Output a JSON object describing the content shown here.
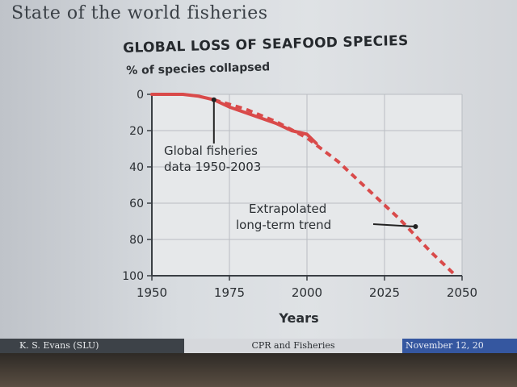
{
  "slide": {
    "title": "State of the world fisheries"
  },
  "chart_data": {
    "type": "line",
    "title": "GLOBAL LOSS OF SEAFOOD SPECIES",
    "ylabel": "% of species collapsed",
    "xlabel": "Years",
    "xlim": [
      1950,
      2050
    ],
    "ylim": [
      0,
      100
    ],
    "y_inverted": true,
    "grid": true,
    "x_ticks": [
      "1950",
      "1975",
      "2000",
      "2025",
      "2050"
    ],
    "y_ticks": [
      "0",
      "20",
      "40",
      "60",
      "80",
      "100"
    ],
    "series": [
      {
        "style": "solid",
        "color": "#d94a4a",
        "x": [
          1950,
          1955,
          1960,
          1965,
          1970,
          1975,
          1980,
          1985,
          1990,
          1995,
          2000,
          2003
        ],
        "y": [
          0,
          0,
          0,
          1,
          3,
          7,
          10,
          13,
          16,
          20,
          22,
          27
        ]
      },
      {
        "style": "dashed",
        "color": "#d94a4a",
        "x": [
          1970,
          1980,
          1990,
          2000,
          2010,
          2020,
          2030,
          2040,
          2048
        ],
        "y": [
          3,
          8,
          15,
          24,
          37,
          53,
          69,
          87,
          100
        ]
      }
    ],
    "annotations": [
      {
        "lines": [
          "Global fisheries",
          "data 1950-2003"
        ],
        "point": [
          1970,
          3
        ]
      },
      {
        "lines": [
          "Extrapolated",
          "long-term trend"
        ],
        "point": [
          2035,
          72
        ]
      }
    ]
  },
  "footer": {
    "author": "K. S. Evans (SLU)",
    "title": "CPR and Fisheries",
    "date": "November 12, 20"
  }
}
